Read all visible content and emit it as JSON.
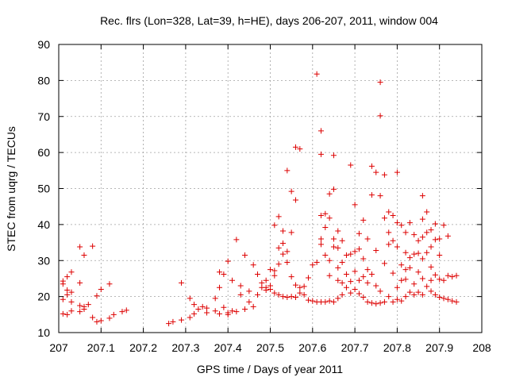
{
  "chart_data": {
    "type": "scatter",
    "title": "Rec. flrs (Lon=328, Lat=39, h=HE), days 206-207, 2011, window 004",
    "xlabel": "GPS time / Days of year 2011",
    "ylabel": "STEC from uqrg / TECUs",
    "xlim": [
      207,
      208
    ],
    "ylim": [
      10,
      90
    ],
    "xticks": [
      "207",
      "207.1",
      "207.2",
      "207.3",
      "207.4",
      "207.5",
      "207.6",
      "207.7",
      "207.8",
      "207.9",
      "208"
    ],
    "yticks": [
      "10",
      "20",
      "30",
      "40",
      "50",
      "60",
      "70",
      "80",
      "90"
    ],
    "grid": true,
    "marker": "plus",
    "color": "#dd0000",
    "x_tick_values": [
      207,
      207.1,
      207.2,
      207.3,
      207.4,
      207.5,
      207.6,
      207.7,
      207.8,
      207.9,
      208
    ],
    "y_tick_values": [
      10,
      20,
      30,
      40,
      50,
      60,
      70,
      80,
      90
    ],
    "series": [
      {
        "name": "STEC",
        "points": [
          [
            207.01,
            23.5
          ],
          [
            207.01,
            24.3
          ],
          [
            207.01,
            19.2
          ],
          [
            207.01,
            15.2
          ],
          [
            207.02,
            25.5
          ],
          [
            207.02,
            21.8
          ],
          [
            207.02,
            20.5
          ],
          [
            207.02,
            15.0
          ],
          [
            207.03,
            26.8
          ],
          [
            207.03,
            21.2
          ],
          [
            207.03,
            18.5
          ],
          [
            207.03,
            16.0
          ],
          [
            207.05,
            33.8
          ],
          [
            207.05,
            23.8
          ],
          [
            207.05,
            17.5
          ],
          [
            207.05,
            15.8
          ],
          [
            207.06,
            31.5
          ],
          [
            207.06,
            17.2
          ],
          [
            207.06,
            16.5
          ],
          [
            207.07,
            17.8
          ],
          [
            207.08,
            34.0
          ],
          [
            207.08,
            14.2
          ],
          [
            207.09,
            20.2
          ],
          [
            207.09,
            13.0
          ],
          [
            207.1,
            13.3
          ],
          [
            207.1,
            22.0
          ],
          [
            207.12,
            23.5
          ],
          [
            207.12,
            14.0
          ],
          [
            207.13,
            15.0
          ],
          [
            207.15,
            15.8
          ],
          [
            207.16,
            16.2
          ],
          [
            207.26,
            12.5
          ],
          [
            207.27,
            13.0
          ],
          [
            207.29,
            13.5
          ],
          [
            207.29,
            23.8
          ],
          [
            207.31,
            14.2
          ],
          [
            207.31,
            19.5
          ],
          [
            207.32,
            15.2
          ],
          [
            207.32,
            17.8
          ],
          [
            207.33,
            16.5
          ],
          [
            207.34,
            17.2
          ],
          [
            207.35,
            15.5
          ],
          [
            207.35,
            16.8
          ],
          [
            207.37,
            19.5
          ],
          [
            207.37,
            16.0
          ],
          [
            207.38,
            15.2
          ],
          [
            207.38,
            22.5
          ],
          [
            207.38,
            26.8
          ],
          [
            207.39,
            26.2
          ],
          [
            207.39,
            17.0
          ],
          [
            207.4,
            15.0
          ],
          [
            207.4,
            15.5
          ],
          [
            207.4,
            29.8
          ],
          [
            207.41,
            24.5
          ],
          [
            207.41,
            16.0
          ],
          [
            207.42,
            35.8
          ],
          [
            207.42,
            15.8
          ],
          [
            207.43,
            23.0
          ],
          [
            207.43,
            20.5
          ],
          [
            207.44,
            31.5
          ],
          [
            207.44,
            16.5
          ],
          [
            207.45,
            18.5
          ],
          [
            207.45,
            21.5
          ],
          [
            207.46,
            28.8
          ],
          [
            207.46,
            17.2
          ],
          [
            207.47,
            26.2
          ],
          [
            207.47,
            20.5
          ],
          [
            207.48,
            23.8
          ],
          [
            207.48,
            22.5
          ],
          [
            207.49,
            24.5
          ],
          [
            207.49,
            21.8
          ],
          [
            207.49,
            22.5
          ],
          [
            207.5,
            27.5
          ],
          [
            207.5,
            23.0
          ],
          [
            207.5,
            22.0
          ],
          [
            207.51,
            39.8
          ],
          [
            207.51,
            25.8
          ],
          [
            207.51,
            27.2
          ],
          [
            207.51,
            21.0
          ],
          [
            207.52,
            33.5
          ],
          [
            207.52,
            29.0
          ],
          [
            207.52,
            42.2
          ],
          [
            207.52,
            20.5
          ],
          [
            207.53,
            31.8
          ],
          [
            207.53,
            34.8
          ],
          [
            207.53,
            38.2
          ],
          [
            207.53,
            20.0
          ],
          [
            207.54,
            55.0
          ],
          [
            207.54,
            32.5
          ],
          [
            207.54,
            29.5
          ],
          [
            207.54,
            19.8
          ],
          [
            207.55,
            49.2
          ],
          [
            207.55,
            37.8
          ],
          [
            207.55,
            25.5
          ],
          [
            207.55,
            20.0
          ],
          [
            207.56,
            61.5
          ],
          [
            207.56,
            46.8
          ],
          [
            207.56,
            23.2
          ],
          [
            207.56,
            19.8
          ],
          [
            207.57,
            61.0
          ],
          [
            207.57,
            22.5
          ],
          [
            207.57,
            21.0
          ],
          [
            207.58,
            22.8
          ],
          [
            207.58,
            20.5
          ],
          [
            207.59,
            25.2
          ],
          [
            207.59,
            19.0
          ],
          [
            207.6,
            28.8
          ],
          [
            207.6,
            18.8
          ],
          [
            207.61,
            81.8
          ],
          [
            207.61,
            29.5
          ],
          [
            207.61,
            18.5
          ],
          [
            207.62,
            59.5
          ],
          [
            207.62,
            66.0
          ],
          [
            207.62,
            42.5
          ],
          [
            207.62,
            36.0
          ],
          [
            207.62,
            34.5
          ],
          [
            207.62,
            18.5
          ],
          [
            207.63,
            43.0
          ],
          [
            207.63,
            39.2
          ],
          [
            207.63,
            31.5
          ],
          [
            207.63,
            18.5
          ],
          [
            207.64,
            48.5
          ],
          [
            207.64,
            41.8
          ],
          [
            207.64,
            30.0
          ],
          [
            207.64,
            25.8
          ],
          [
            207.64,
            18.8
          ],
          [
            207.65,
            59.2
          ],
          [
            207.65,
            49.8
          ],
          [
            207.65,
            36.0
          ],
          [
            207.65,
            33.8
          ],
          [
            207.65,
            18.5
          ],
          [
            207.66,
            38.2
          ],
          [
            207.66,
            33.5
          ],
          [
            207.66,
            28.0
          ],
          [
            207.66,
            24.5
          ],
          [
            207.66,
            19.5
          ],
          [
            207.67,
            35.5
          ],
          [
            207.67,
            29.5
          ],
          [
            207.67,
            23.8
          ],
          [
            207.67,
            20.5
          ],
          [
            207.68,
            31.5
          ],
          [
            207.68,
            26.2
          ],
          [
            207.68,
            22.5
          ],
          [
            207.69,
            56.5
          ],
          [
            207.69,
            31.8
          ],
          [
            207.69,
            24.2
          ],
          [
            207.69,
            21.0
          ],
          [
            207.7,
            45.5
          ],
          [
            207.7,
            32.5
          ],
          [
            207.7,
            27.0
          ],
          [
            207.7,
            22.0
          ],
          [
            207.71,
            37.5
          ],
          [
            207.71,
            33.2
          ],
          [
            207.71,
            24.5
          ],
          [
            207.71,
            20.8
          ],
          [
            207.72,
            41.2
          ],
          [
            207.72,
            30.5
          ],
          [
            207.72,
            25.5
          ],
          [
            207.72,
            19.8
          ],
          [
            207.73,
            36.0
          ],
          [
            207.73,
            27.5
          ],
          [
            207.73,
            23.8
          ],
          [
            207.73,
            18.5
          ],
          [
            207.74,
            56.2
          ],
          [
            207.74,
            48.2
          ],
          [
            207.74,
            26.2
          ],
          [
            207.74,
            18.2
          ],
          [
            207.75,
            54.5
          ],
          [
            207.75,
            32.8
          ],
          [
            207.75,
            23.0
          ],
          [
            207.75,
            18.0
          ],
          [
            207.76,
            79.5
          ],
          [
            207.76,
            70.2
          ],
          [
            207.76,
            48.0
          ],
          [
            207.76,
            21.5
          ],
          [
            207.76,
            18.2
          ],
          [
            207.77,
            53.8
          ],
          [
            207.77,
            41.8
          ],
          [
            207.77,
            29.2
          ],
          [
            207.77,
            18.5
          ],
          [
            207.78,
            43.5
          ],
          [
            207.78,
            37.8
          ],
          [
            207.78,
            34.5
          ],
          [
            207.78,
            20.0
          ],
          [
            207.79,
            42.5
          ],
          [
            207.79,
            35.5
          ],
          [
            207.79,
            26.5
          ],
          [
            207.79,
            18.5
          ],
          [
            207.8,
            54.5
          ],
          [
            207.8,
            40.5
          ],
          [
            207.8,
            33.8
          ],
          [
            207.8,
            22.5
          ],
          [
            207.8,
            19.2
          ],
          [
            207.81,
            39.8
          ],
          [
            207.81,
            28.8
          ],
          [
            207.81,
            24.5
          ],
          [
            207.81,
            18.8
          ],
          [
            207.82,
            37.8
          ],
          [
            207.82,
            32.2
          ],
          [
            207.82,
            27.5
          ],
          [
            207.82,
            24.8
          ],
          [
            207.82,
            20.0
          ],
          [
            207.83,
            40.5
          ],
          [
            207.83,
            30.8
          ],
          [
            207.83,
            28.0
          ],
          [
            207.83,
            21.2
          ],
          [
            207.84,
            37.2
          ],
          [
            207.84,
            31.8
          ],
          [
            207.84,
            23.5
          ],
          [
            207.84,
            20.5
          ],
          [
            207.85,
            35.5
          ],
          [
            207.85,
            32.0
          ],
          [
            207.85,
            26.8
          ],
          [
            207.85,
            21.2
          ],
          [
            207.86,
            48.0
          ],
          [
            207.86,
            41.5
          ],
          [
            207.86,
            36.5
          ],
          [
            207.86,
            30.5
          ],
          [
            207.86,
            25.0
          ],
          [
            207.86,
            20.5
          ],
          [
            207.87,
            43.5
          ],
          [
            207.87,
            37.8
          ],
          [
            207.87,
            32.2
          ],
          [
            207.87,
            22.8
          ],
          [
            207.88,
            38.5
          ],
          [
            207.88,
            33.8
          ],
          [
            207.88,
            28.2
          ],
          [
            207.88,
            24.5
          ],
          [
            207.88,
            21.5
          ],
          [
            207.89,
            40.2
          ],
          [
            207.89,
            35.8
          ],
          [
            207.89,
            26.0
          ],
          [
            207.89,
            20.5
          ],
          [
            207.9,
            36.0
          ],
          [
            207.9,
            31.5
          ],
          [
            207.9,
            24.8
          ],
          [
            207.9,
            19.8
          ],
          [
            207.91,
            39.8
          ],
          [
            207.91,
            24.5
          ],
          [
            207.91,
            19.5
          ],
          [
            207.92,
            36.8
          ],
          [
            207.92,
            25.8
          ],
          [
            207.92,
            19.2
          ],
          [
            207.93,
            25.5
          ],
          [
            207.93,
            18.8
          ],
          [
            207.94,
            25.8
          ],
          [
            207.94,
            18.5
          ]
        ]
      }
    ]
  }
}
